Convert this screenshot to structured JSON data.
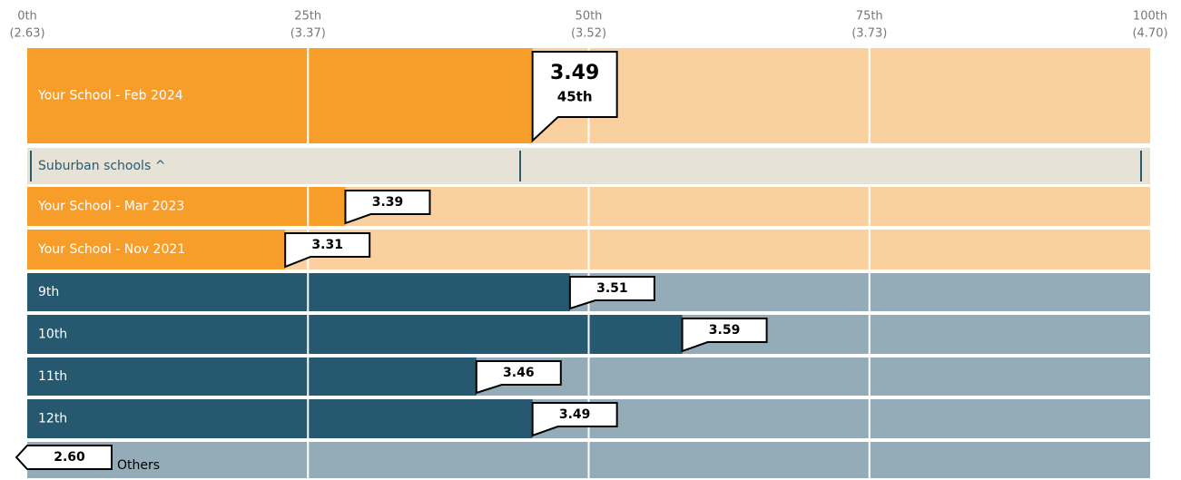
{
  "chart_data": {
    "type": "percentile-bar",
    "xticks": [
      {
        "value": 2.63,
        "label": "(2.63)",
        "percentile": "0th"
      },
      {
        "value": 3.37,
        "label": "(3.37)",
        "percentile": "25th"
      },
      {
        "value": 3.52,
        "label": "(3.52)",
        "percentile": "50th"
      },
      {
        "value": 3.73,
        "label": "(3.73)",
        "percentile": "75th"
      },
      {
        "value": 4.7,
        "label": "(4.70)",
        "percentile": "100th"
      }
    ],
    "rows": [
      {
        "label": "Your School - Feb 2024",
        "value": 3.49,
        "value_label": "3.49",
        "percentile_label": "45th",
        "color": "#f79e2a",
        "track": "#f9d09e"
      },
      {
        "label": "Suburban schools ^",
        "value": null,
        "color": "#2a5a70",
        "track": "#e6e2d6"
      },
      {
        "label": "Your School - Mar 2023",
        "value": 3.39,
        "value_label": "3.39",
        "color": "#f79e2a",
        "track": "#f9d09e"
      },
      {
        "label": "Your School - Nov 2021",
        "value": 3.31,
        "value_label": "3.31",
        "color": "#f79e2a",
        "track": "#f9d09e"
      },
      {
        "label": "9th",
        "value": 3.51,
        "value_label": "3.51",
        "color": "#265870",
        "track": "#94abb8"
      },
      {
        "label": "10th",
        "value": 3.59,
        "value_label": "3.59",
        "color": "#265870",
        "track": "#94abb8"
      },
      {
        "label": "11th",
        "value": 3.46,
        "value_label": "3.46",
        "color": "#265870",
        "track": "#94abb8"
      },
      {
        "label": "12th",
        "value": 3.49,
        "value_label": "3.49",
        "color": "#265870",
        "track": "#94abb8"
      },
      {
        "label": "Others",
        "value": 2.6,
        "value_label": "2.60",
        "color": "#265870",
        "track": "#94abb8"
      }
    ]
  }
}
